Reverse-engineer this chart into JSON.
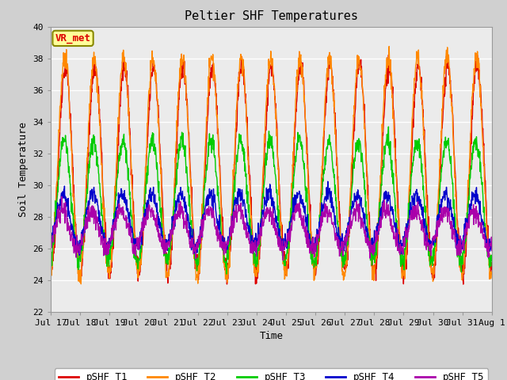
{
  "title": "Peltier SHF Temperatures",
  "xlabel": "Time",
  "ylabel": "Soil Temperature",
  "ylim": [
    22,
    40
  ],
  "yticks": [
    22,
    24,
    26,
    28,
    30,
    32,
    34,
    36,
    38,
    40
  ],
  "xtick_labels": [
    "Jul 17",
    "Jul 18",
    "Jul 19",
    "Jul 20",
    "Jul 21",
    "Jul 22",
    "Jul 23",
    "Jul 24",
    "Jul 25",
    "Jul 26",
    "Jul 27",
    "Jul 28",
    "Jul 29",
    "Jul 30",
    "Jul 31",
    "Aug 1"
  ],
  "series_colors": [
    "#dd0000",
    "#ff8800",
    "#00cc00",
    "#0000cc",
    "#aa00aa"
  ],
  "series_names": [
    "pSHF_T1",
    "pSHF_T2",
    "pSHF_T3",
    "pSHF_T4",
    "pSHF_T5"
  ],
  "annotation_text": "VR_met",
  "annotation_color": "#dd0000",
  "annotation_bg": "#ffff99",
  "fig_facecolor": "#d0d0d0",
  "plot_bg": "#ebebeb",
  "grid_color": "#ffffff",
  "title_fontsize": 11,
  "axis_label_fontsize": 9,
  "tick_fontsize": 8,
  "legend_fontsize": 9,
  "n_points": 1440,
  "period_hours": 24,
  "t1_mean": 31.0,
  "t1_amp": 6.5,
  "t1_phase": -1.57,
  "t2_mean": 31.2,
  "t2_amp": 6.8,
  "t2_phase": -1.45,
  "t3_mean": 29.0,
  "t3_amp": 3.8,
  "t3_phase": -1.3,
  "t4_mean": 27.8,
  "t4_amp": 1.6,
  "t4_phase": -1.1,
  "t5_mean": 27.2,
  "t5_amp": 1.2,
  "t5_phase": -0.9
}
